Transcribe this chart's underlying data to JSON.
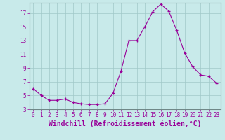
{
  "hours": [
    0,
    1,
    2,
    3,
    4,
    5,
    6,
    7,
    8,
    9,
    10,
    11,
    12,
    13,
    14,
    15,
    16,
    17,
    18,
    19,
    20,
    21,
    22,
    23
  ],
  "values": [
    6.0,
    5.0,
    4.3,
    4.3,
    4.5,
    4.0,
    3.8,
    3.7,
    3.7,
    3.8,
    5.3,
    8.5,
    13.0,
    13.0,
    15.0,
    17.2,
    18.3,
    17.3,
    14.5,
    11.2,
    9.2,
    8.0,
    7.8,
    6.8
  ],
  "line_color": "#990099",
  "marker": "+",
  "background_color": "#c8eaea",
  "grid_color": "#a0c8c8",
  "xlabel": "Windchill (Refroidissement éolien,°C)",
  "ylim": [
    3,
    18.5
  ],
  "xlim": [
    -0.5,
    23.5
  ],
  "yticks": [
    3,
    5,
    7,
    9,
    11,
    13,
    15,
    17
  ],
  "xticks": [
    0,
    1,
    2,
    3,
    4,
    5,
    6,
    7,
    8,
    9,
    10,
    11,
    12,
    13,
    14,
    15,
    16,
    17,
    18,
    19,
    20,
    21,
    22,
    23
  ],
  "tick_color": "#990099",
  "tick_fontsize": 5.5,
  "xlabel_fontsize": 7.0,
  "spine_color": "#708888"
}
